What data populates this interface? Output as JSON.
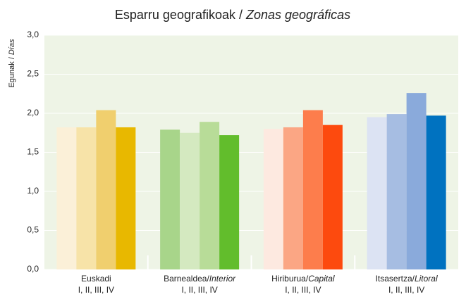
{
  "chart_data": {
    "type": "bar",
    "title": "Esparru geografikoak / ",
    "title_italic": "Zonas geográficas",
    "y_label": "Egunak / ",
    "y_label_italic": "Días",
    "categories": [
      {
        "name": "Euskadi"
      },
      {
        "name": "Barnealdea/",
        "name_italic": "Interior"
      },
      {
        "name": "Hiriburua/",
        "name_italic": "Capital"
      },
      {
        "name": "Itsasertza/",
        "name_italic": "Litoral"
      }
    ],
    "subcategory_label": "I, II, III, IV",
    "series": [
      {
        "values": [
          1.82,
          1.79,
          1.8,
          1.95
        ],
        "colors": [
          "#fbf0d8",
          "#a8d58a",
          "#fde9e0",
          "#dce3f3"
        ]
      },
      {
        "values": [
          1.82,
          1.75,
          1.82,
          1.99
        ],
        "colors": [
          "#f7e3a8",
          "#d4e9c0",
          "#fba684",
          "#a6bde2"
        ]
      },
      {
        "values": [
          2.04,
          1.89,
          2.04,
          2.26
        ],
        "colors": [
          "#f0cf6e",
          "#b8dc98",
          "#fd7d4c",
          "#8aaadb"
        ]
      },
      {
        "values": [
          1.82,
          1.72,
          1.85,
          1.97
        ],
        "colors": [
          "#e8b800",
          "#62bd2c",
          "#fd4a0e",
          "#0072c0"
        ]
      }
    ],
    "ylim": [
      0,
      3
    ],
    "yticks": [
      {
        "value": 0,
        "label": "0,0"
      },
      {
        "value": 0.5,
        "label": "0,5"
      },
      {
        "value": 1,
        "label": "1,0"
      },
      {
        "value": 1.5,
        "label": "1,5"
      },
      {
        "value": 2,
        "label": "2,0"
      },
      {
        "value": 2.5,
        "label": "2,5"
      },
      {
        "value": 3,
        "label": "3,0"
      }
    ],
    "grid": true,
    "background": "#eef4e6"
  }
}
